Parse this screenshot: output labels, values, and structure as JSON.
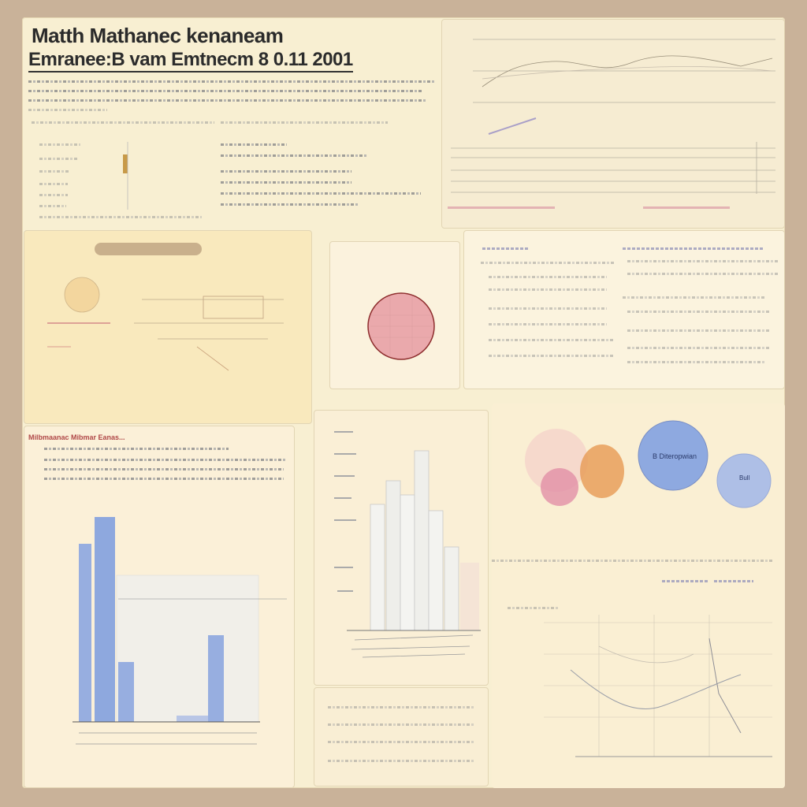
{
  "header": {
    "title": "Matth Mathanec kenaneam",
    "subtitle": "Emranee:B vam Emtnecm 8 0.11 2001"
  },
  "panels": {
    "mid_left_pill": " ",
    "bot_left_heading": "Milbmaanac Mibmar Eanas...",
    "venn_label": "B Diteropwian",
    "venn_small_label": "Bull"
  },
  "colors": {
    "sheet": "#f8efd2",
    "border": "#c9b299",
    "blue": "#7f9fd9",
    "pink": "#e08aa4",
    "orange": "#e79a54",
    "red_circle": "#e9a6a8"
  }
}
